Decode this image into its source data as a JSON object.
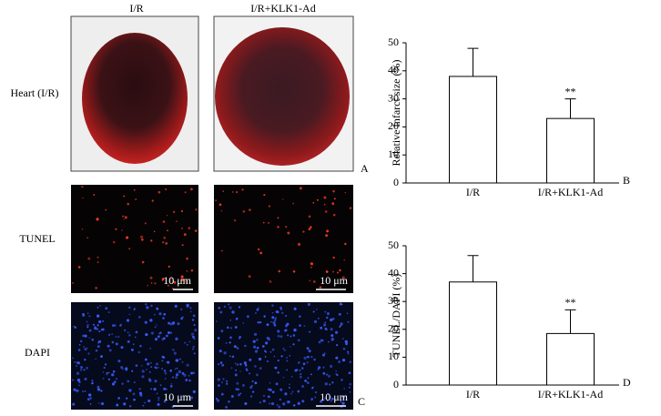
{
  "figure": {
    "columns": [
      "I/R",
      "I/R+KLK1-Ad"
    ],
    "rows": [
      "Heart (I/R)",
      "TUNEL",
      "DAPI"
    ],
    "scale_bars": [
      "10 μm",
      "10 μm",
      "10 μm",
      "10 μm"
    ],
    "panel_labels": [
      "A",
      "C"
    ]
  },
  "chart_data": [
    {
      "type": "bar",
      "panel_label": "B",
      "ylabel": "Relative infarct size (%)",
      "categories": [
        "I/R",
        "I/R+KLK1-Ad"
      ],
      "values": [
        38,
        23
      ],
      "errors": [
        10,
        7
      ],
      "value_annotations": [
        null,
        "**"
      ],
      "color": "#ffffff",
      "ylim": [
        0,
        50
      ],
      "yticks": [
        0,
        10,
        20,
        30,
        40,
        50
      ],
      "grid": false
    },
    {
      "type": "bar",
      "panel_label": "D",
      "ylabel": "TUNEL/DAPI (%)",
      "categories": [
        "I/R",
        "I/R+KLK1-Ad"
      ],
      "values": [
        37,
        18.5
      ],
      "errors": [
        9.5,
        8.5
      ],
      "value_annotations": [
        null,
        "**"
      ],
      "color": "#ffffff",
      "ylim": [
        0,
        50
      ],
      "yticks": [
        0,
        10,
        20,
        30,
        40,
        50
      ],
      "grid": false
    }
  ]
}
